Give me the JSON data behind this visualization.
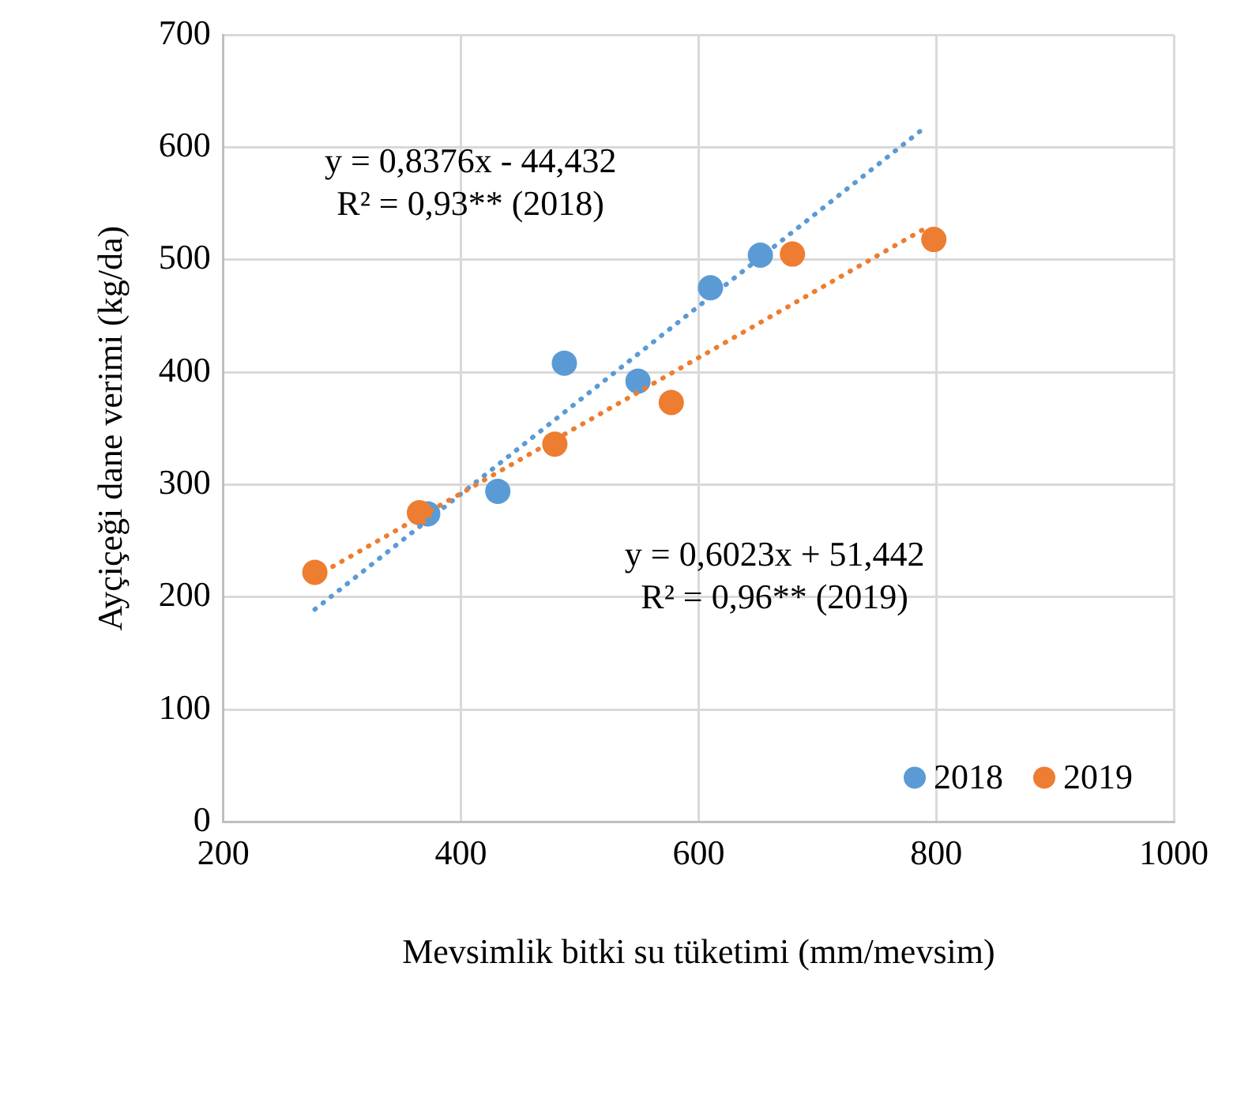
{
  "chart_data": {
    "type": "scatter",
    "xlabel": "Mevsimlik bitki su tüketimi (mm/mevsim)",
    "ylabel": "Ayçiçeği dane verimi (kg/da)",
    "xlim": [
      200,
      1000
    ],
    "xticks": [
      200,
      400,
      600,
      800,
      1000
    ],
    "ylim": [
      0,
      700
    ],
    "yticks": [
      0,
      100,
      200,
      300,
      400,
      500,
      600,
      700
    ],
    "grid": true,
    "legend": "bottom right",
    "marker": "circle",
    "series": [
      {
        "name": "2018",
        "color": "#5b9bd5",
        "x": [
          372,
          431,
          487,
          549,
          610,
          652
        ],
        "values": [
          274,
          294,
          408,
          392,
          475,
          504
        ]
      },
      {
        "name": "2019",
        "color": "#ed7d31",
        "x": [
          277,
          365,
          479,
          577,
          679,
          798
        ],
        "values": [
          222,
          275,
          336,
          373,
          505,
          518
        ]
      },
      {
        "type": "line",
        "color": "#5b9bd5",
        "line_style": "dotted",
        "marker": "none",
        "x": [
          277,
          791
        ],
        "values": [
          189,
          618
        ]
      },
      {
        "type": "line",
        "color": "#ed7d31",
        "line_style": "dotted",
        "marker": "none",
        "x": [
          277,
          791
        ],
        "values": [
          218,
          528
        ]
      }
    ],
    "annotations": [
      "y = 0,8376x - 44,432\nR² = 0,93** (2018)",
      "y = 0,6023x + 51,442\nR² = 0,96** (2019)"
    ]
  }
}
